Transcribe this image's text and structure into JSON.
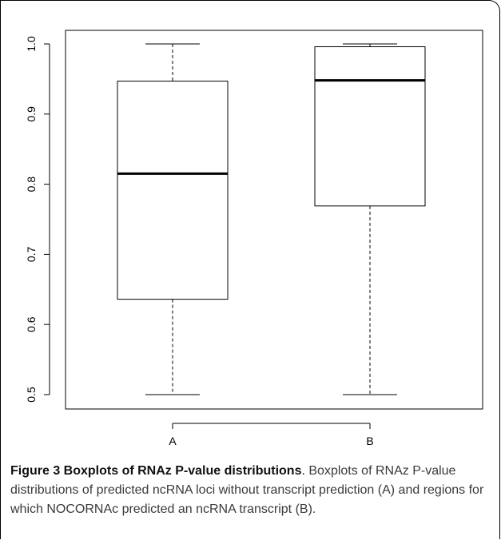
{
  "chart_data": {
    "type": "box",
    "xlabel": "",
    "ylabel": "",
    "ylim": [
      0.5,
      1.0
    ],
    "yticks": [
      0.5,
      0.6,
      0.7,
      0.8,
      0.9,
      1.0
    ],
    "ytick_labels": [
      "0.5",
      "0.6",
      "0.7",
      "0.8",
      "0.9",
      "1.0"
    ],
    "categories": [
      "A",
      "B"
    ],
    "boxes": [
      {
        "category": "A",
        "min": 0.5,
        "q1": 0.636,
        "median": 0.815,
        "q3": 0.947,
        "max": 1.0
      },
      {
        "category": "B",
        "min": 0.5,
        "q1": 0.769,
        "median": 0.948,
        "q3": 0.996,
        "max": 1.0
      }
    ],
    "grid": false,
    "legend": "none"
  },
  "caption": {
    "title": "Figure 3 Boxplots of RNAz P-value distributions",
    "separator": ".",
    "body": " Boxplots of RNAz P-value distributions of predicted ncRNA loci without transcript prediction (A) and regions for which NOCORNAc predicted an ncRNA transcript (B)."
  }
}
